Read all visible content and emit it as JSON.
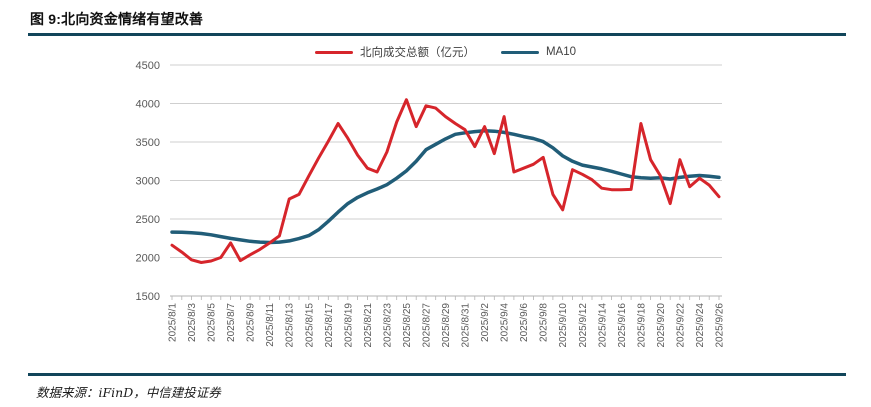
{
  "figure": {
    "title": "图 9:北向资金情绪有望改善"
  },
  "source": {
    "text": "数据来源：iFinD，中信建投证券"
  },
  "colors": {
    "accent_bar": "#11455a",
    "gridline": "#cfcfcf",
    "axis_line": "#b3b3b3",
    "tick_label": "#595959",
    "series_red": "#d6252b",
    "series_teal": "#215d78"
  },
  "chart_data": {
    "type": "line",
    "title": "",
    "xlabel": "",
    "ylabel": "",
    "grid": true,
    "legend_position": "top-center",
    "ylim": [
      1500,
      4500
    ],
    "yticks": [
      1500,
      2000,
      2500,
      3000,
      3500,
      4000,
      4500
    ],
    "label_every": 2,
    "categories": [
      "2025/8/1",
      "2025/8/2",
      "2025/8/3",
      "2025/8/4",
      "2025/8/5",
      "2025/8/6",
      "2025/8/7",
      "2025/8/8",
      "2025/8/9",
      "2025/8/10",
      "2025/8/11",
      "2025/8/12",
      "2025/8/13",
      "2025/8/14",
      "2025/8/15",
      "2025/8/16",
      "2025/8/17",
      "2025/8/18",
      "2025/8/19",
      "2025/8/20",
      "2025/8/21",
      "2025/8/22",
      "2025/8/23",
      "2025/8/24",
      "2025/8/25",
      "2025/8/26",
      "2025/8/27",
      "2025/8/28",
      "2025/8/29",
      "2025/8/30",
      "2025/8/31",
      "2025/9/1",
      "2025/9/2",
      "2025/9/3",
      "2025/9/4",
      "2025/9/5",
      "2025/9/6",
      "2025/9/7",
      "2025/9/8",
      "2025/9/9",
      "2025/9/10",
      "2025/9/11",
      "2025/9/12",
      "2025/9/13",
      "2025/9/14",
      "2025/9/15",
      "2025/9/16",
      "2025/9/17",
      "2025/9/18",
      "2025/9/19",
      "2025/9/20",
      "2025/9/21",
      "2025/9/22",
      "2025/9/23",
      "2025/9/24",
      "2025/9/25",
      "2025/9/26"
    ],
    "series": [
      {
        "name": "北向成交总额（亿元）",
        "color": "#d6252b",
        "values": [
          2160,
          2070,
          1970,
          1935,
          1955,
          2000,
          2190,
          1960,
          2035,
          2105,
          2190,
          2280,
          2760,
          2820,
          3060,
          3290,
          3510,
          3740,
          3550,
          3330,
          3160,
          3110,
          3370,
          3760,
          4050,
          3700,
          3970,
          3940,
          3830,
          3740,
          3660,
          3440,
          3700,
          3350,
          3830,
          3110,
          3160,
          3210,
          3300,
          2820,
          2620,
          3140,
          3080,
          3010,
          2900,
          2880,
          2880,
          2885,
          3740,
          3270,
          3060,
          2700,
          3270,
          2920,
          3030,
          2940,
          2790
        ]
      },
      {
        "name": "MA10",
        "color": "#215d78",
        "values": [
          2330,
          2328,
          2322,
          2312,
          2295,
          2272,
          2248,
          2228,
          2210,
          2200,
          2195,
          2200,
          2215,
          2245,
          2285,
          2360,
          2470,
          2590,
          2700,
          2780,
          2840,
          2890,
          2945,
          3030,
          3125,
          3250,
          3400,
          3470,
          3540,
          3600,
          3620,
          3635,
          3645,
          3640,
          3625,
          3600,
          3570,
          3545,
          3505,
          3425,
          3320,
          3250,
          3200,
          3175,
          3150,
          3120,
          3085,
          3050,
          3035,
          3030,
          3035,
          3020,
          3040,
          3055,
          3065,
          3055,
          3040
        ]
      }
    ]
  }
}
